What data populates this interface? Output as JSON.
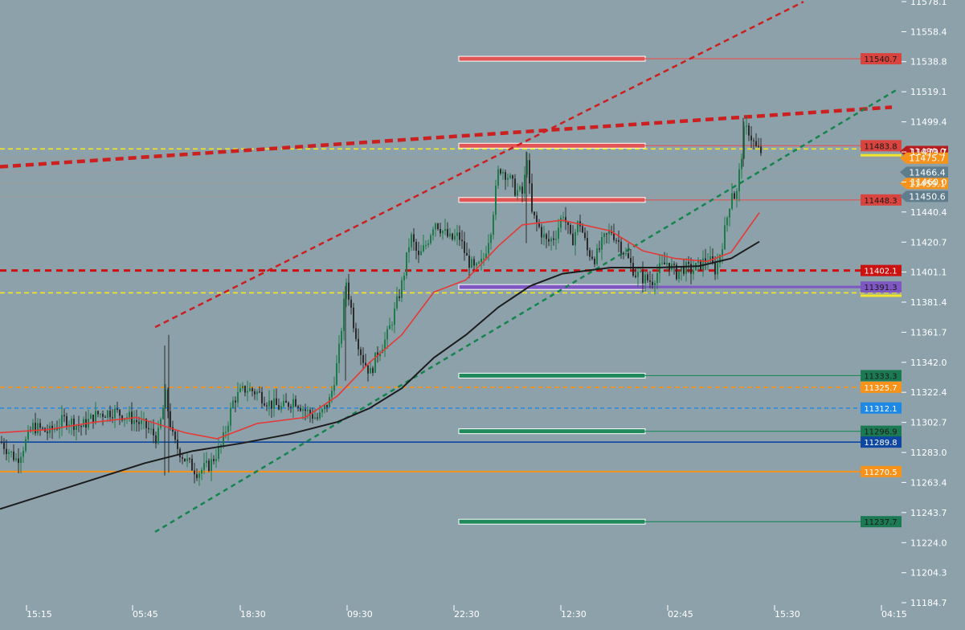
{
  "colors": {
    "background": "#8da1ab",
    "axis_text": "#ffffff",
    "up_candle": "#1f7a4a",
    "down_candle": "#2b2b2b",
    "ema_fast": "#e53935",
    "ema_slow": "#1c1c1c",
    "red_trend": "#cc1f1f",
    "green_trend": "#14844e",
    "supply_zone": "#e25555",
    "demand_zone": "#1f8a5c",
    "purple": "#7e57c2",
    "yellow": "#f2e52a",
    "orange": "#f7931a",
    "blue_dash": "#1e88e5",
    "navy": "#0d47a1",
    "price_tag": "#b71c1c",
    "grey_tag": "#5f7d8c"
  },
  "chart_data": {
    "type": "candlestick",
    "y_axis": {
      "ticks": [
        "11578.1",
        "11558.4",
        "11538.8",
        "11519.1",
        "11499.4",
        "11479.7",
        "11460.0",
        "11440.4",
        "11420.7",
        "11401.1",
        "11381.4",
        "11361.7",
        "11342.0",
        "11322.4",
        "11302.7",
        "11283.0",
        "11263.4",
        "11243.7",
        "11224.0",
        "11204.3",
        "11184.7"
      ],
      "range": [
        11184.7,
        11578.1
      ]
    },
    "x_axis": {
      "ticks": [
        "15:15",
        "05:45",
        "18:30",
        "09:30",
        "22:30",
        "12:30",
        "02:45",
        "15:30",
        "04:15"
      ]
    },
    "price_series_anchors": [
      [
        0,
        11290
      ],
      [
        20,
        11278
      ],
      [
        40,
        11300
      ],
      [
        60,
        11296
      ],
      [
        80,
        11305
      ],
      [
        100,
        11300
      ],
      [
        120,
        11308
      ],
      [
        140,
        11310
      ],
      [
        160,
        11306
      ],
      [
        180,
        11300
      ],
      [
        195,
        11292
      ],
      [
        205,
        11320
      ],
      [
        215,
        11290
      ],
      [
        230,
        11278
      ],
      [
        245,
        11270
      ],
      [
        260,
        11275
      ],
      [
        275,
        11288
      ],
      [
        290,
        11318
      ],
      [
        305,
        11325
      ],
      [
        320,
        11322
      ],
      [
        335,
        11315
      ],
      [
        350,
        11312
      ],
      [
        365,
        11318
      ],
      [
        380,
        11310
      ],
      [
        395,
        11305
      ],
      [
        410,
        11318
      ],
      [
        420,
        11345
      ],
      [
        430,
        11395
      ],
      [
        440,
        11365
      ],
      [
        450,
        11345
      ],
      [
        460,
        11335
      ],
      [
        470,
        11350
      ],
      [
        480,
        11358
      ],
      [
        490,
        11375
      ],
      [
        500,
        11395
      ],
      [
        510,
        11425
      ],
      [
        520,
        11410
      ],
      [
        530,
        11420
      ],
      [
        540,
        11435
      ],
      [
        550,
        11428
      ],
      [
        560,
        11422
      ],
      [
        570,
        11425
      ],
      [
        580,
        11410
      ],
      [
        590,
        11402
      ],
      [
        600,
        11408
      ],
      [
        610,
        11430
      ],
      [
        620,
        11470
      ],
      [
        630,
        11465
      ],
      [
        640,
        11455
      ],
      [
        650,
        11452
      ],
      [
        655,
        11478
      ],
      [
        660,
        11440
      ],
      [
        670,
        11430
      ],
      [
        680,
        11420
      ],
      [
        690,
        11425
      ],
      [
        700,
        11440
      ],
      [
        710,
        11420
      ],
      [
        720,
        11435
      ],
      [
        730,
        11415
      ],
      [
        740,
        11410
      ],
      [
        750,
        11422
      ],
      [
        760,
        11428
      ],
      [
        770,
        11420
      ],
      [
        780,
        11410
      ],
      [
        790,
        11400
      ],
      [
        800,
        11397
      ],
      [
        810,
        11395
      ],
      [
        820,
        11403
      ],
      [
        830,
        11408
      ],
      [
        840,
        11400
      ],
      [
        850,
        11404
      ],
      [
        860,
        11402
      ],
      [
        870,
        11406
      ],
      [
        880,
        11410
      ],
      [
        890,
        11402
      ],
      [
        900,
        11425
      ],
      [
        905,
        11440
      ],
      [
        910,
        11455
      ],
      [
        915,
        11448
      ],
      [
        920,
        11470
      ],
      [
        925,
        11492
      ],
      [
        930,
        11495
      ],
      [
        935,
        11488
      ],
      [
        940,
        11482
      ],
      [
        945,
        11480
      ]
    ],
    "moving_averages": [
      {
        "anchors": [
          [
            0,
            11296
          ],
          [
            60,
            11298
          ],
          [
            120,
            11303
          ],
          [
            170,
            11306
          ],
          [
            230,
            11296
          ],
          [
            270,
            11292
          ],
          [
            320,
            11302
          ],
          [
            380,
            11306
          ],
          [
            420,
            11320
          ],
          [
            460,
            11342
          ],
          [
            500,
            11360
          ],
          [
            540,
            11388
          ],
          [
            580,
            11396
          ],
          [
            620,
            11418
          ],
          [
            650,
            11432
          ],
          [
            700,
            11435
          ],
          [
            760,
            11428
          ],
          [
            800,
            11415
          ],
          [
            840,
            11410
          ],
          [
            880,
            11408
          ],
          [
            910,
            11414
          ],
          [
            945,
            11440
          ]
        ]
      },
      {
        "anchors": [
          [
            0,
            11246
          ],
          [
            60,
            11256
          ],
          [
            120,
            11266
          ],
          [
            180,
            11276
          ],
          [
            240,
            11284
          ],
          [
            300,
            11289
          ],
          [
            360,
            11295
          ],
          [
            420,
            11303
          ],
          [
            460,
            11312
          ],
          [
            500,
            11325
          ],
          [
            540,
            11345
          ],
          [
            580,
            11360
          ],
          [
            620,
            11378
          ],
          [
            660,
            11392
          ],
          [
            700,
            11400
          ],
          [
            760,
            11404
          ],
          [
            820,
            11404
          ],
          [
            870,
            11405
          ],
          [
            910,
            11410
          ],
          [
            945,
            11421
          ]
        ]
      }
    ],
    "horizontal_levels": [
      {
        "price": 11540.7,
        "label": "11540.7",
        "kind": "supply"
      },
      {
        "price": 11483.8,
        "label": "11483.8",
        "kind": "supply"
      },
      {
        "price": 11448.3,
        "label": "11448.3",
        "kind": "supply"
      },
      {
        "price": 11402.1,
        "label": "11402.1",
        "kind": "red-dashed"
      },
      {
        "price": 11391.3,
        "label": "11391.3",
        "kind": "purple"
      },
      {
        "price": 11333.3,
        "label": "11333.3",
        "kind": "demand"
      },
      {
        "price": 11325.7,
        "label": "11325.7",
        "kind": "orange-dashed"
      },
      {
        "price": 11312.1,
        "label": "11312.1",
        "kind": "blue-dashed"
      },
      {
        "price": 11296.9,
        "label": "11296.9",
        "kind": "demand"
      },
      {
        "price": 11289.8,
        "label": "11289.8",
        "kind": "navy"
      },
      {
        "price": 11270.5,
        "label": "11270.5",
        "kind": "orange-solid"
      },
      {
        "price": 11237.7,
        "label": "11237.7",
        "kind": "demand"
      }
    ],
    "price_markers": [
      {
        "price": 11480.0,
        "label": "11480.0",
        "kind": "last-price"
      },
      {
        "price": 11475.7,
        "label": "11475.7",
        "kind": "orange-tag"
      },
      {
        "price": 11466.4,
        "label": "11466.4",
        "kind": "grey-tag"
      },
      {
        "price": 11459.1,
        "label": "11459.1",
        "kind": "orange-tag"
      },
      {
        "price": 11450.6,
        "label": "11450.6",
        "kind": "grey-tag"
      }
    ]
  }
}
